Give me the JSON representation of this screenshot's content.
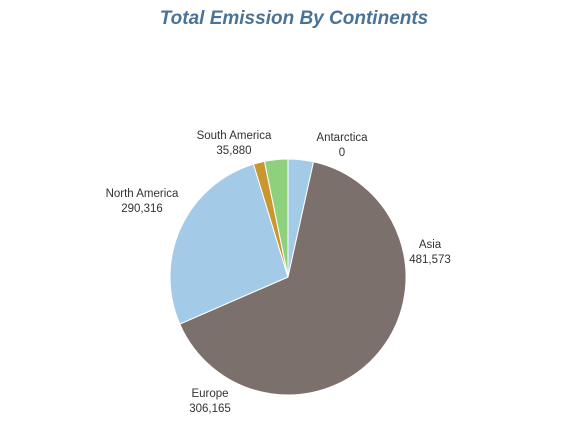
{
  "chart_data": {
    "type": "pie",
    "title": "Total Emission By Continents",
    "slices": [
      {
        "name": "Asia",
        "value": 481573,
        "value_label": "481,573",
        "color": "#7b706b"
      },
      {
        "name": "Europe",
        "value": 306165,
        "value_label": "306,165",
        "color": "#7b706b"
      },
      {
        "name": "North America",
        "value": 290316,
        "value_label": "290,316",
        "color": "#a3cbe7"
      },
      {
        "name": "South America",
        "value": 35880,
        "value_label": "35,880",
        "color": "#8fd07d"
      },
      {
        "name": "Antarctica",
        "value": 0,
        "value_label": "0",
        "color": "#a3cbe7"
      }
    ],
    "legend": "none"
  }
}
